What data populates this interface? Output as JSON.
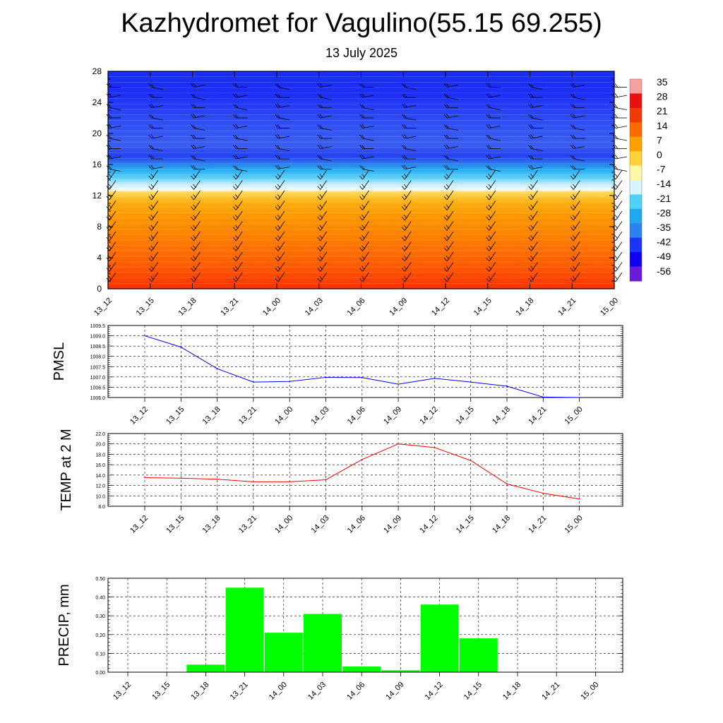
{
  "title": "Kazhydromet for Vagulino(55.15 69.255)",
  "subtitle": "13 July 2025",
  "time_labels": [
    "13_12",
    "13_15",
    "13_18",
    "13_21",
    "14_00",
    "14_03",
    "14_06",
    "14_09",
    "14_12",
    "14_15",
    "14_18",
    "14_21",
    "15_00"
  ],
  "chart_data": [
    {
      "type": "heatmap",
      "description_kind": "temperature cross-section with wind barbs",
      "y_ticks": [
        0,
        4,
        8,
        12,
        16,
        20,
        24,
        28
      ],
      "ylim": [
        0,
        28
      ],
      "colorbar_labels": [
        "35",
        "28",
        "21",
        "14",
        "7",
        "0",
        "-7",
        "-14",
        "-21",
        "-28",
        "-35",
        "-42",
        "-49",
        "-56"
      ],
      "colorbar_colors": [
        "#f6a0a0",
        "#e81010",
        "#f03a08",
        "#ff6a00",
        "#ffa000",
        "#ffd23a",
        "#fff8a8",
        "#d8f4ff",
        "#50d2f8",
        "#20a8ef",
        "#2f80f0",
        "#1a34f8",
        "#1000ee",
        "#6a1ad8"
      ]
    },
    {
      "type": "line",
      "ylabel": "PMSL",
      "ylim": [
        1006.0,
        1009.5
      ],
      "y_ticks": [
        "1006.0",
        "1006.5",
        "1007.0",
        "1007.5",
        "1008.0",
        "1008.5",
        "1009.0",
        "1009.5"
      ],
      "series": [
        {
          "color": "#0000ff",
          "values": [
            1009.0,
            1008.45,
            1007.4,
            1006.75,
            1006.78,
            1006.98,
            1006.97,
            1006.65,
            1006.93,
            1006.75,
            1006.55,
            1006.02,
            1006.0
          ]
        }
      ]
    },
    {
      "type": "line",
      "ylabel": "TEMP at 2 M",
      "ylim": [
        8.0,
        22.0
      ],
      "y_ticks": [
        "8.0",
        "10.0",
        "12.0",
        "14.0",
        "16.0",
        "18.0",
        "20.0",
        "22.0"
      ],
      "series": [
        {
          "color": "#ff0000",
          "values": [
            13.5,
            13.4,
            13.2,
            12.7,
            12.7,
            13.1,
            17.0,
            20.0,
            19.3,
            16.8,
            12.3,
            10.5,
            9.4
          ]
        }
      ]
    },
    {
      "type": "bar",
      "ylabel": "PRECIP, mm",
      "ylim": [
        0.0,
        0.5
      ],
      "y_ticks": [
        "0.00",
        "0.10",
        "0.20",
        "0.30",
        "0.40",
        "0.50"
      ],
      "bar_color": "#00ff00",
      "values": [
        0,
        0,
        0.04,
        0.45,
        0.21,
        0.31,
        0.03,
        0.01,
        0.36,
        0.18,
        0,
        0,
        0
      ]
    }
  ]
}
